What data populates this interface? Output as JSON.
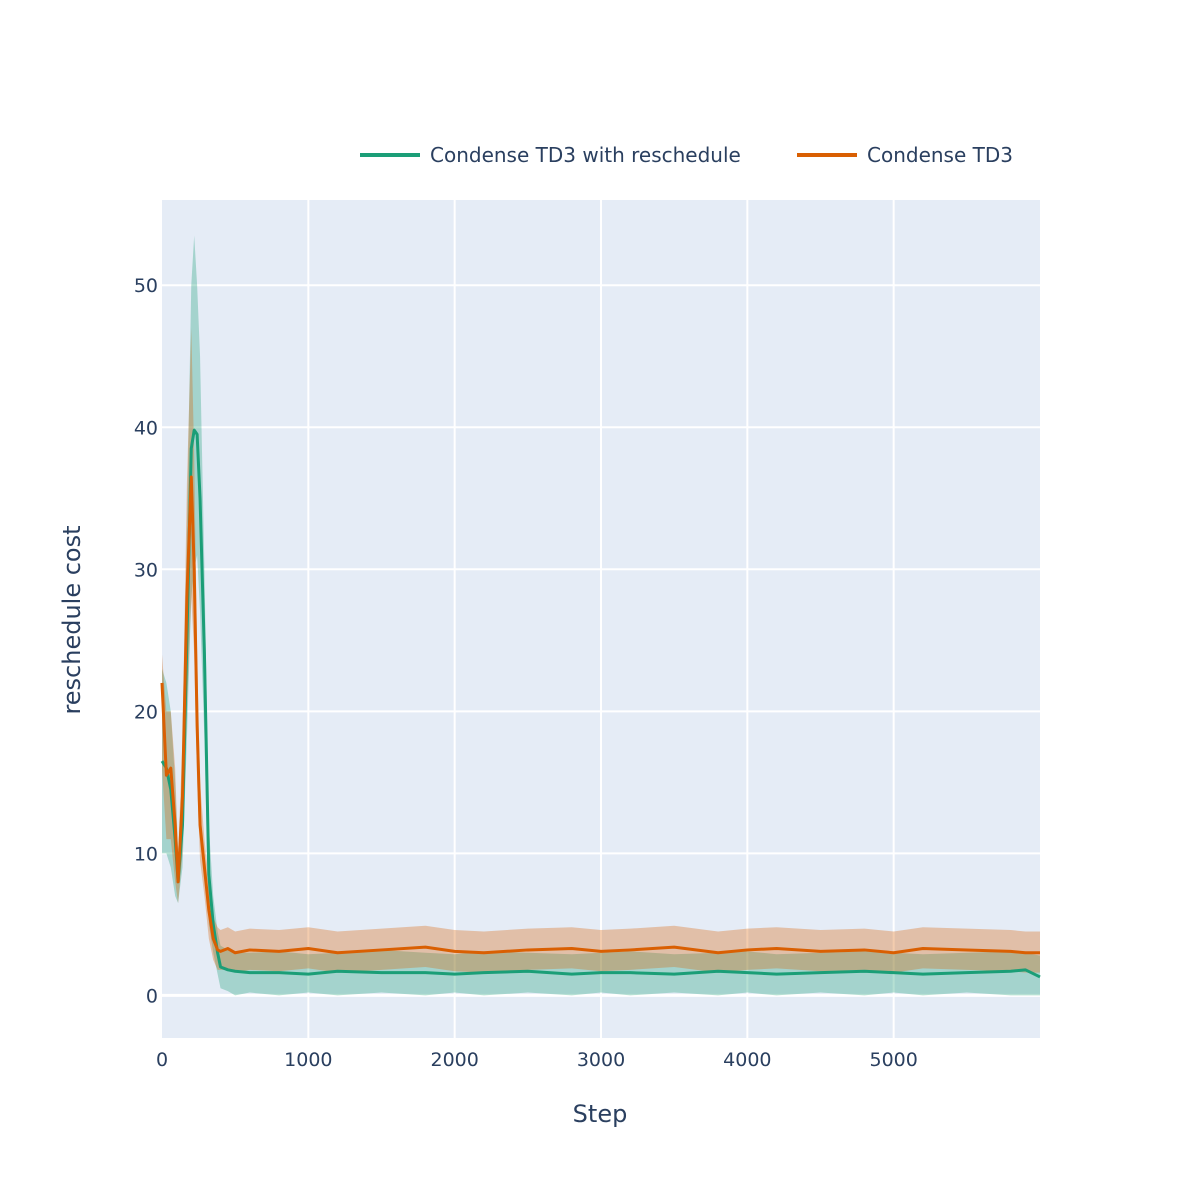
{
  "chart_data": {
    "type": "line",
    "xlabel": "Step",
    "ylabel": "reschedule cost",
    "xlim": [
      0,
      6000
    ],
    "ylim": [
      -3,
      56
    ],
    "xticks": [
      0,
      1000,
      2000,
      3000,
      4000,
      5000
    ],
    "yticks": [
      0,
      10,
      20,
      30,
      40,
      50
    ],
    "grid": true,
    "legend_position": "top-right",
    "background": "#e5ecf6",
    "series": [
      {
        "name": "Condense TD3 with reschedule",
        "color": "#1b9e77",
        "band_color": "rgba(27,158,119,0.32)",
        "x": [
          0,
          30,
          60,
          90,
          110,
          140,
          170,
          200,
          220,
          240,
          260,
          290,
          320,
          350,
          380,
          400,
          450,
          500,
          600,
          800,
          1000,
          1200,
          1500,
          1800,
          2000,
          2200,
          2500,
          2800,
          3000,
          3200,
          3500,
          3800,
          4000,
          4200,
          4500,
          4800,
          5000,
          5200,
          5500,
          5800,
          5900,
          6000
        ],
        "y": [
          16.5,
          16.0,
          14.5,
          11.0,
          8.0,
          12.0,
          25.0,
          38.5,
          39.8,
          39.5,
          35.0,
          24.0,
          8.5,
          5.0,
          3.0,
          2.0,
          1.8,
          1.7,
          1.6,
          1.6,
          1.5,
          1.7,
          1.6,
          1.6,
          1.5,
          1.6,
          1.7,
          1.5,
          1.6,
          1.6,
          1.5,
          1.7,
          1.6,
          1.5,
          1.6,
          1.7,
          1.6,
          1.5,
          1.6,
          1.7,
          1.8,
          1.3
        ],
        "lower": [
          10.0,
          10.0,
          9.0,
          7.0,
          6.5,
          9.0,
          18.0,
          28.0,
          30.0,
          31.0,
          27.0,
          18.0,
          5.0,
          3.0,
          1.5,
          0.5,
          0.3,
          0.0,
          0.2,
          0.0,
          0.2,
          0.0,
          0.2,
          0.0,
          0.2,
          0.0,
          0.2,
          0.0,
          0.2,
          0.0,
          0.2,
          0.0,
          0.2,
          0.0,
          0.2,
          0.0,
          0.2,
          0.0,
          0.2,
          0.0,
          0.0,
          0.0
        ],
        "upper": [
          23.0,
          22.0,
          20.0,
          15.0,
          10.0,
          16.0,
          33.0,
          50.0,
          53.5,
          50.0,
          45.0,
          30.0,
          12.0,
          7.0,
          4.5,
          3.5,
          3.2,
          3.0,
          3.0,
          3.1,
          2.9,
          3.0,
          3.2,
          3.0,
          2.9,
          3.1,
          3.0,
          2.9,
          3.0,
          3.1,
          2.9,
          3.0,
          3.1,
          2.9,
          3.0,
          3.1,
          3.0,
          2.9,
          3.0,
          3.1,
          3.0,
          2.8
        ]
      },
      {
        "name": "Condense TD3",
        "color": "#d95f02",
        "band_color": "rgba(217,95,2,0.32)",
        "x": [
          0,
          30,
          60,
          90,
          110,
          140,
          170,
          200,
          220,
          240,
          260,
          290,
          320,
          350,
          380,
          400,
          450,
          500,
          600,
          800,
          1000,
          1200,
          1500,
          1800,
          2000,
          2200,
          2500,
          2800,
          3000,
          3200,
          3500,
          3800,
          4000,
          4200,
          4500,
          4800,
          5000,
          5200,
          5500,
          5800,
          5900,
          6000
        ],
        "y": [
          22.0,
          15.5,
          16.0,
          12.0,
          8.0,
          14.0,
          28.0,
          36.5,
          30.0,
          19.0,
          12.0,
          9.0,
          6.0,
          4.0,
          3.2,
          3.1,
          3.3,
          3.0,
          3.2,
          3.1,
          3.3,
          3.0,
          3.2,
          3.4,
          3.1,
          3.0,
          3.2,
          3.3,
          3.1,
          3.2,
          3.4,
          3.0,
          3.2,
          3.3,
          3.1,
          3.2,
          3.0,
          3.3,
          3.2,
          3.1,
          3.0,
          3.0
        ],
        "lower": [
          16.0,
          11.0,
          11.0,
          8.0,
          6.5,
          10.0,
          20.0,
          28.0,
          24.0,
          15.0,
          9.5,
          7.0,
          4.0,
          2.5,
          1.8,
          1.8,
          1.8,
          1.6,
          1.8,
          1.7,
          1.9,
          1.6,
          1.8,
          2.0,
          1.7,
          1.6,
          1.8,
          1.9,
          1.7,
          1.8,
          2.0,
          1.6,
          1.8,
          1.9,
          1.7,
          1.8,
          1.6,
          1.9,
          1.8,
          1.7,
          1.6,
          1.6
        ],
        "upper": [
          24.0,
          20.0,
          20.0,
          16.0,
          10.0,
          18.0,
          36.0,
          47.0,
          38.0,
          24.0,
          15.0,
          11.0,
          8.0,
          5.5,
          4.8,
          4.6,
          4.8,
          4.5,
          4.7,
          4.6,
          4.8,
          4.5,
          4.7,
          4.9,
          4.6,
          4.5,
          4.7,
          4.8,
          4.6,
          4.7,
          4.9,
          4.5,
          4.7,
          4.8,
          4.6,
          4.7,
          4.5,
          4.8,
          4.7,
          4.6,
          4.5,
          4.5
        ]
      }
    ]
  }
}
